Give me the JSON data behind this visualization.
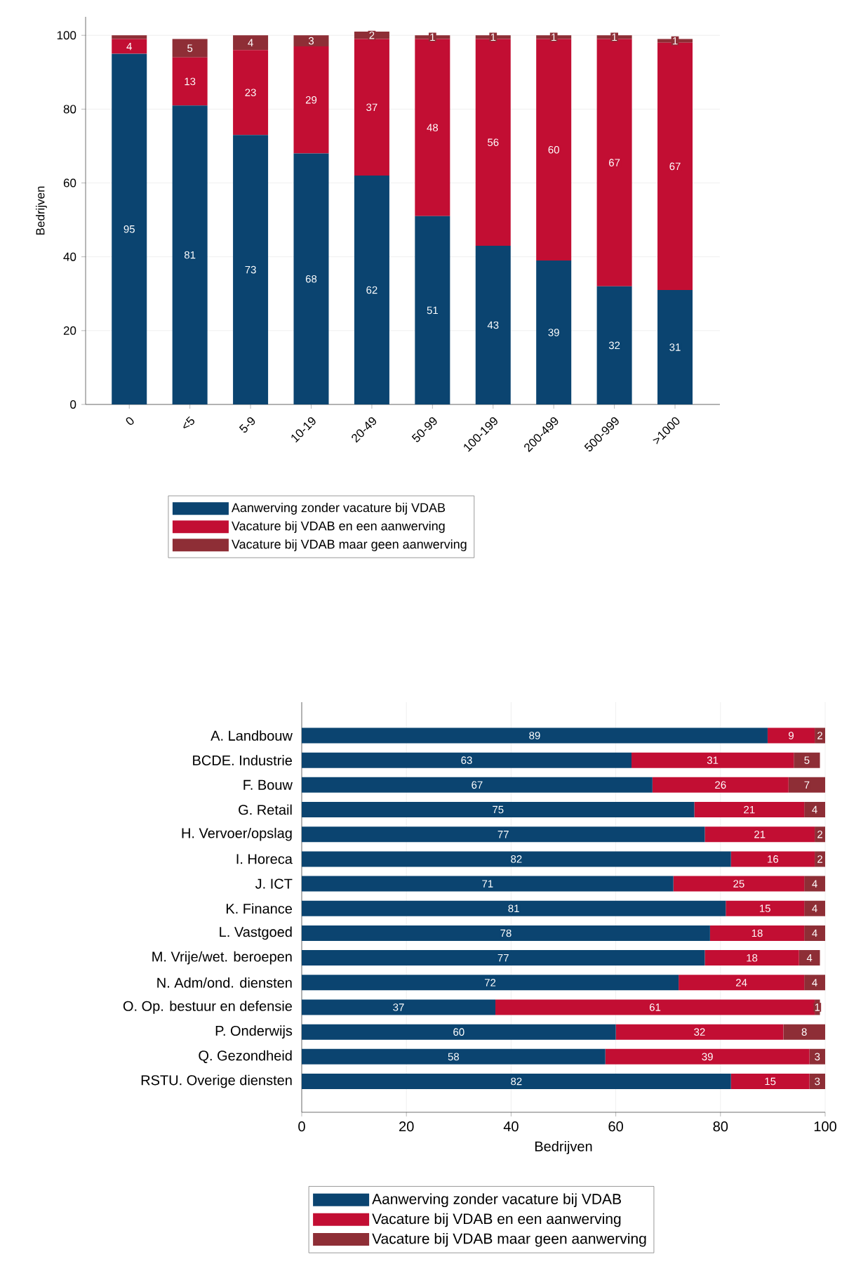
{
  "chart_data": [
    {
      "type": "bar",
      "stacked": true,
      "ylabel": "Bedrijven",
      "categories": [
        "0",
        "<5",
        "5-9",
        "10-19",
        "20-49",
        "50-99",
        "100-199",
        "200-499",
        "500-999",
        ">1000"
      ],
      "series": [
        {
          "name": "Aanwerving zonder vacature bij VDAB",
          "color": "#0b4470",
          "values": [
            95,
            81,
            73,
            68,
            62,
            51,
            43,
            39,
            32,
            31
          ],
          "value_labels": [
            "95",
            "81",
            "73",
            "68",
            "62",
            "51",
            "43",
            "39",
            "32",
            "31"
          ]
        },
        {
          "name": "Vacature bij VDAB en een aanwerving",
          "color": "#c20e33",
          "values": [
            4,
            13,
            23,
            29,
            37,
            48,
            56,
            60,
            67,
            67
          ],
          "value_labels": [
            "4",
            "13",
            "23",
            "29",
            "37",
            "48",
            "56",
            "60",
            "67",
            "67"
          ]
        },
        {
          "name": "Vacature bij VDAB maar geen aanwerving",
          "color": "#8e2e36",
          "values": [
            1,
            5,
            4,
            3,
            2,
            1,
            1,
            1,
            1,
            1
          ],
          "value_labels": [
            null,
            "5",
            "4",
            "3",
            "2",
            "1",
            "1",
            "1",
            "1",
            "1"
          ]
        }
      ],
      "ylim": [
        0,
        105
      ],
      "yticks": [
        0,
        20,
        40,
        60,
        80,
        100
      ],
      "grid": "y",
      "legend": "bottom"
    },
    {
      "type": "bar",
      "stacked": true,
      "orientation": "horizontal",
      "xlabel": "Bedrijven",
      "categories": [
        "A. Landbouw",
        "BCDE. Industrie",
        "F. Bouw",
        "G. Retail",
        "H. Vervoer/opslag",
        "I. Horeca",
        "J. ICT",
        "K. Finance",
        "L. Vastgoed",
        "M. Vrije/wet. beroepen",
        "N. Adm/ond. diensten",
        "O. Op. bestuur en defensie",
        "P. Onderwijs",
        "Q. Gezondheid",
        "RSTU. Overige diensten"
      ],
      "series": [
        {
          "name": "Aanwerving zonder vacature bij VDAB",
          "color": "#0b4470",
          "values": [
            89,
            63,
            67,
            75,
            77,
            82,
            71,
            81,
            78,
            77,
            72,
            37,
            60,
            58,
            82
          ]
        },
        {
          "name": "Vacature bij VDAB en een aanwerving",
          "color": "#c20e33",
          "values": [
            9,
            31,
            26,
            21,
            21,
            16,
            25,
            15,
            18,
            18,
            24,
            61,
            32,
            39,
            15
          ]
        },
        {
          "name": "Vacature bij VDAB maar geen aanwerving",
          "color": "#8e2e36",
          "values": [
            2,
            5,
            7,
            4,
            2,
            2,
            4,
            4,
            4,
            4,
            4,
            1,
            8,
            3,
            3
          ]
        }
      ],
      "xlim": [
        0,
        100
      ],
      "xticks": [
        0,
        20,
        40,
        60,
        80,
        100
      ],
      "grid": "x",
      "data_labels": true,
      "legend": "bottom"
    }
  ]
}
